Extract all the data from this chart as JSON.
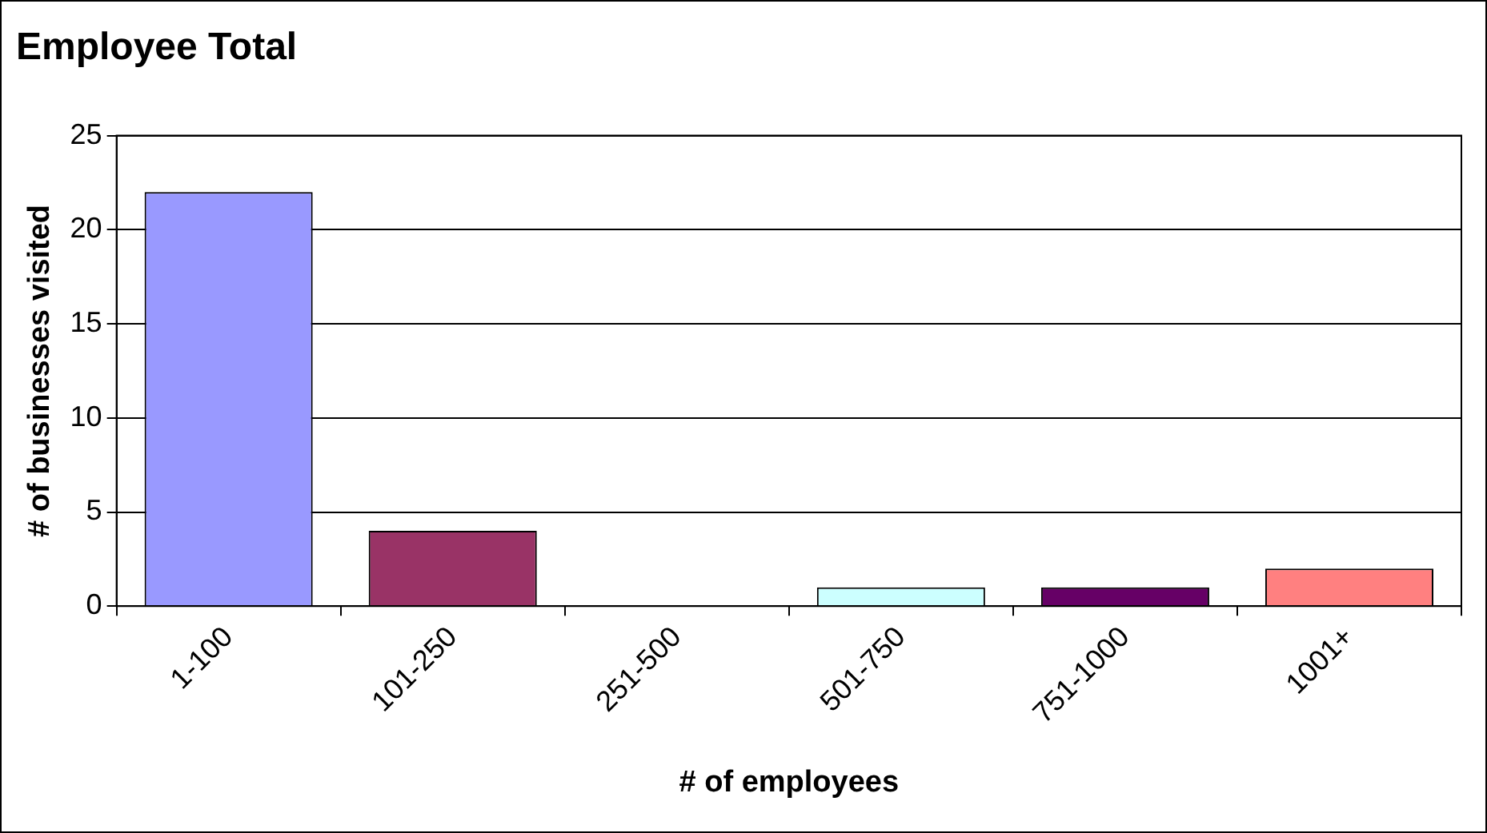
{
  "chart_data": {
    "type": "bar",
    "title": "Employee Total",
    "xlabel": "# of employees",
    "ylabel": "# of businesses visited",
    "categories": [
      "1-100",
      "101-250",
      "251-500",
      "501-750",
      "751-1000",
      "1001+"
    ],
    "values": [
      22,
      4,
      0,
      1,
      1,
      2
    ],
    "colors": [
      "#9999ff",
      "#993366",
      "#ffffcc",
      "#ccffff",
      "#660066",
      "#ff8080"
    ],
    "ylim": [
      0,
      25
    ],
    "yticks": [
      0,
      5,
      10,
      15,
      20,
      25
    ],
    "grid": "y",
    "legend": false
  }
}
